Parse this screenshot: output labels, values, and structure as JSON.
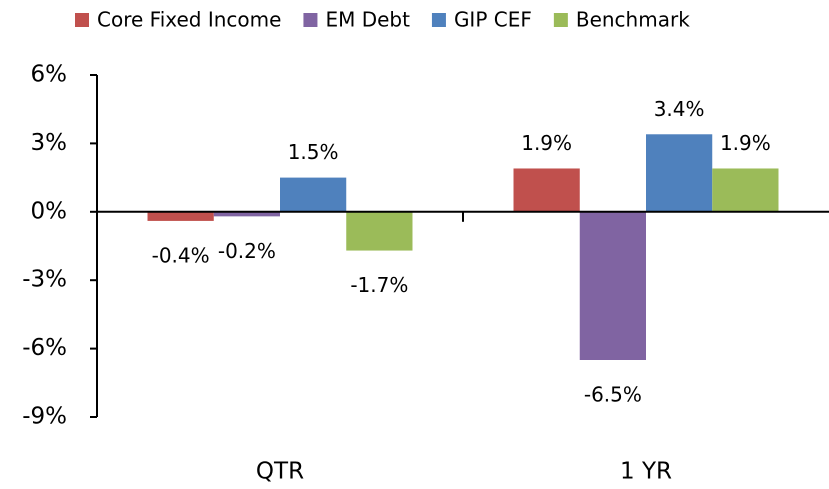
{
  "chart_data": {
    "type": "bar",
    "categories": [
      "QTR",
      "1 YR"
    ],
    "series": [
      {
        "name": "Core Fixed Income",
        "color": "#c0504d",
        "values": [
          -0.4,
          1.9
        ],
        "value_labels": [
          "-0.4%",
          "1.9%"
        ]
      },
      {
        "name": "EM Debt",
        "color": "#8064a2",
        "values": [
          -0.2,
          -6.5
        ],
        "value_labels": [
          "-0.2%",
          "-6.5%"
        ]
      },
      {
        "name": "GIP CEF",
        "color": "#4f81bd",
        "values": [
          1.5,
          3.4
        ],
        "value_labels": [
          "1.5%",
          "3.4%"
        ]
      },
      {
        "name": "Benchmark",
        "color": "#9bbb59",
        "values": [
          -1.7,
          1.9
        ],
        "value_labels": [
          "-1.7%",
          "1.9%"
        ]
      }
    ],
    "ylim": [
      -9,
      6
    ],
    "yticks": [
      {
        "value": -9,
        "label": "-9%"
      },
      {
        "value": -6,
        "label": "-6%"
      },
      {
        "value": -3,
        "label": "-3%"
      },
      {
        "value": 0,
        "label": "0%"
      },
      {
        "value": 3,
        "label": "3%"
      },
      {
        "value": 6,
        "label": "6%"
      }
    ],
    "legend": "top",
    "grid": false
  }
}
